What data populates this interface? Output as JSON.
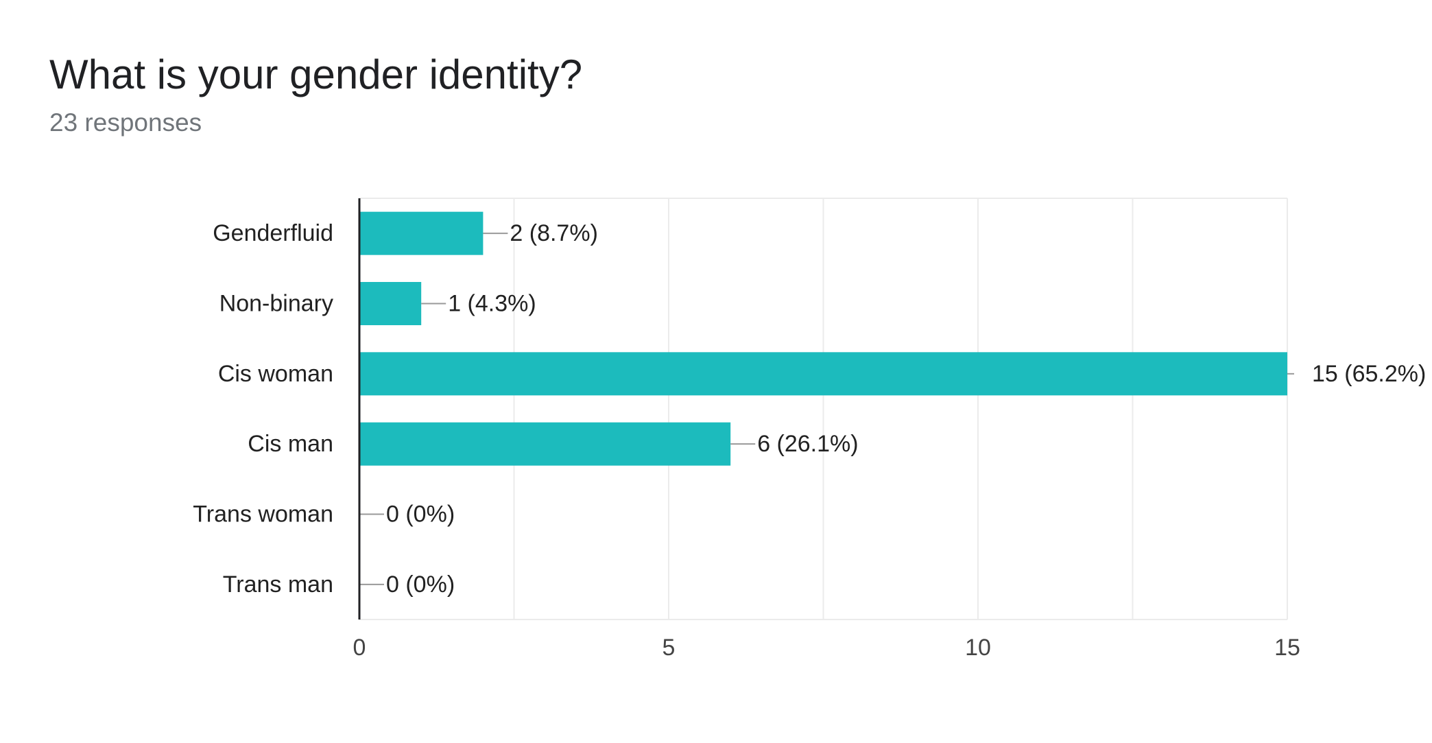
{
  "header": {
    "title": "What is your gender identity?",
    "response_count": "23 responses"
  },
  "colors": {
    "bar": "#1cbbbd",
    "grid": "#ebebeb",
    "axis": "#202124",
    "leader": "#999999",
    "label_text": "#212121",
    "tick_text": "#444444"
  },
  "chart_data": {
    "type": "bar",
    "orientation": "horizontal",
    "categories": [
      "Genderfluid",
      "Non-binary",
      "Cis woman",
      "Cis man",
      "Trans woman",
      "Trans man"
    ],
    "values": [
      2,
      1,
      15,
      6,
      0,
      0
    ],
    "data_labels": [
      "2 (8.7%)",
      "1 (4.3%)",
      "15 (65.2%)",
      "6 (26.1%)",
      "0 (0%)",
      "0 (0%)"
    ],
    "xlim": [
      0,
      15
    ],
    "x_ticks": [
      0,
      5,
      10,
      15
    ],
    "x_minor_gridlines": [
      2.5,
      7.5,
      12.5
    ],
    "grid": true,
    "legend": "none"
  }
}
